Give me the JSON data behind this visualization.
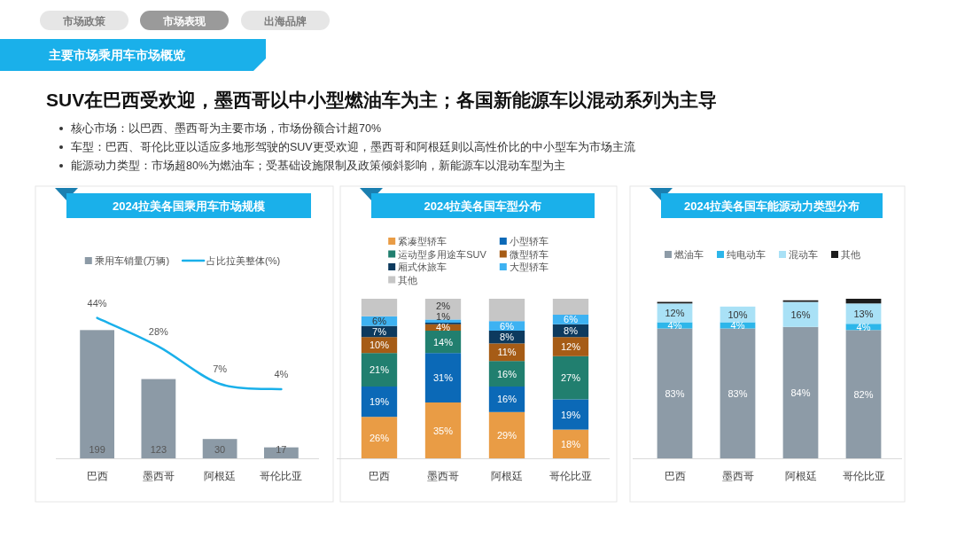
{
  "chart_data": [
    {
      "type": "bar",
      "title": "2024拉美各国乘用车市场规模",
      "categories": [
        "巴西",
        "墨西哥",
        "阿根廷",
        "哥伦比亚"
      ],
      "series": [
        {
          "name": "乘用车销量(万辆)",
          "color": "#8c9aa6",
          "values": [
            199,
            123,
            30,
            17
          ],
          "value_labels": [
            "199",
            "123",
            "30",
            "17"
          ]
        },
        {
          "name": "占比拉美整体(%)",
          "type": "line",
          "axis": "y2",
          "color": "#1ab0ea",
          "values": [
            44,
            28,
            7,
            4
          ],
          "value_labels": [
            "44%",
            "28%",
            "7%",
            "4%"
          ]
        }
      ],
      "tick_labels": "x",
      "legend": "top",
      "marker": "none",
      "annotations": [
        "市场政策",
        "市场表现",
        "出海品牌",
        "主要市场乘用车市场概览",
        "SUV在巴西受欢迎，墨西哥以中小型燃油车为主；各国新能源车以混动系列为主导",
        "核心市场：以巴西、墨西哥为主要市场，市场份额合计超70%",
        "车型：巴西、哥伦比亚以适应多地形驾驶的SUV更受欢迎，墨西哥和阿根廷则以高性价比的中小型车为市场主流",
        "能源动力类型：市场超80%为燃油车；受基础设施限制及政策倾斜影响，新能源车以混动车型为主"
      ]
    },
    {
      "type": "bar",
      "title": "2024拉美各国车型分布",
      "categories": [
        "巴西",
        "墨西哥",
        "阿根廷",
        "哥伦比亚"
      ],
      "stacked": true,
      "series": [
        {
          "name": "紧凑型轿车",
          "color": "#e99c45",
          "values": [
            26,
            35,
            29,
            18
          ],
          "value_labels": [
            "26%",
            "35%",
            "29%",
            "18%"
          ]
        },
        {
          "name": "小型轿车",
          "color": "#0b69b7",
          "values": [
            19,
            31,
            16,
            19
          ],
          "value_labels": [
            "19%",
            "31%",
            "16%",
            "19%"
          ]
        },
        {
          "name": "运动型多用途车SUV",
          "color": "#217f6f",
          "values": [
            21,
            14,
            16,
            27
          ],
          "value_labels": [
            "21%",
            "14%",
            "16%",
            "27%"
          ]
        },
        {
          "name": "微型轿车",
          "color": "#a65c16",
          "values": [
            10,
            4,
            11,
            12
          ],
          "value_labels": [
            "10%",
            "4%",
            "11%",
            "12%"
          ]
        },
        {
          "name": "厢式休旅车",
          "color": "#0d3a5e",
          "values": [
            7,
            1,
            8,
            8
          ],
          "value_labels": [
            "7%",
            "1%",
            "8%",
            "8%"
          ]
        },
        {
          "name": "大型轿车",
          "color": "#3db2f2",
          "values": [
            6,
            2,
            6,
            6
          ],
          "value_labels": [
            "6%",
            "2%",
            "6%",
            "6%"
          ]
        },
        {
          "name": "其他",
          "color": "#c6c6c6",
          "values": [
            11,
            13,
            14,
            10
          ],
          "value_labels": [
            null,
            null,
            null,
            null
          ]
        }
      ],
      "ylim": [
        0,
        100
      ],
      "tick_labels": "x",
      "legend": "top"
    },
    {
      "type": "bar",
      "title": "2024拉美各国车能源动力类型分布",
      "categories": [
        "巴西",
        "墨西哥",
        "阿根廷",
        "哥伦比亚"
      ],
      "stacked": true,
      "series": [
        {
          "name": "燃油车",
          "color": "#8d9ba7",
          "values": [
            83,
            83,
            84,
            82
          ],
          "value_labels": [
            "83%",
            "83%",
            "84%",
            "82%"
          ]
        },
        {
          "name": "纯电动车",
          "color": "#2db6ea",
          "values": [
            4,
            4,
            null,
            4
          ],
          "value_labels": [
            "4%",
            "4%",
            null,
            "4%"
          ]
        },
        {
          "name": "混动车",
          "color": "#a9e1f6",
          "values": [
            12,
            10,
            16,
            13
          ],
          "value_labels": [
            "12%",
            "10%",
            "16%",
            "13%"
          ]
        },
        {
          "name": "其他",
          "color": "#1c1c1c",
          "values": [
            1,
            null,
            1,
            3
          ],
          "value_labels": [
            null,
            null,
            null,
            null
          ]
        }
      ],
      "tick_labels": "x",
      "legend": "top"
    }
  ]
}
